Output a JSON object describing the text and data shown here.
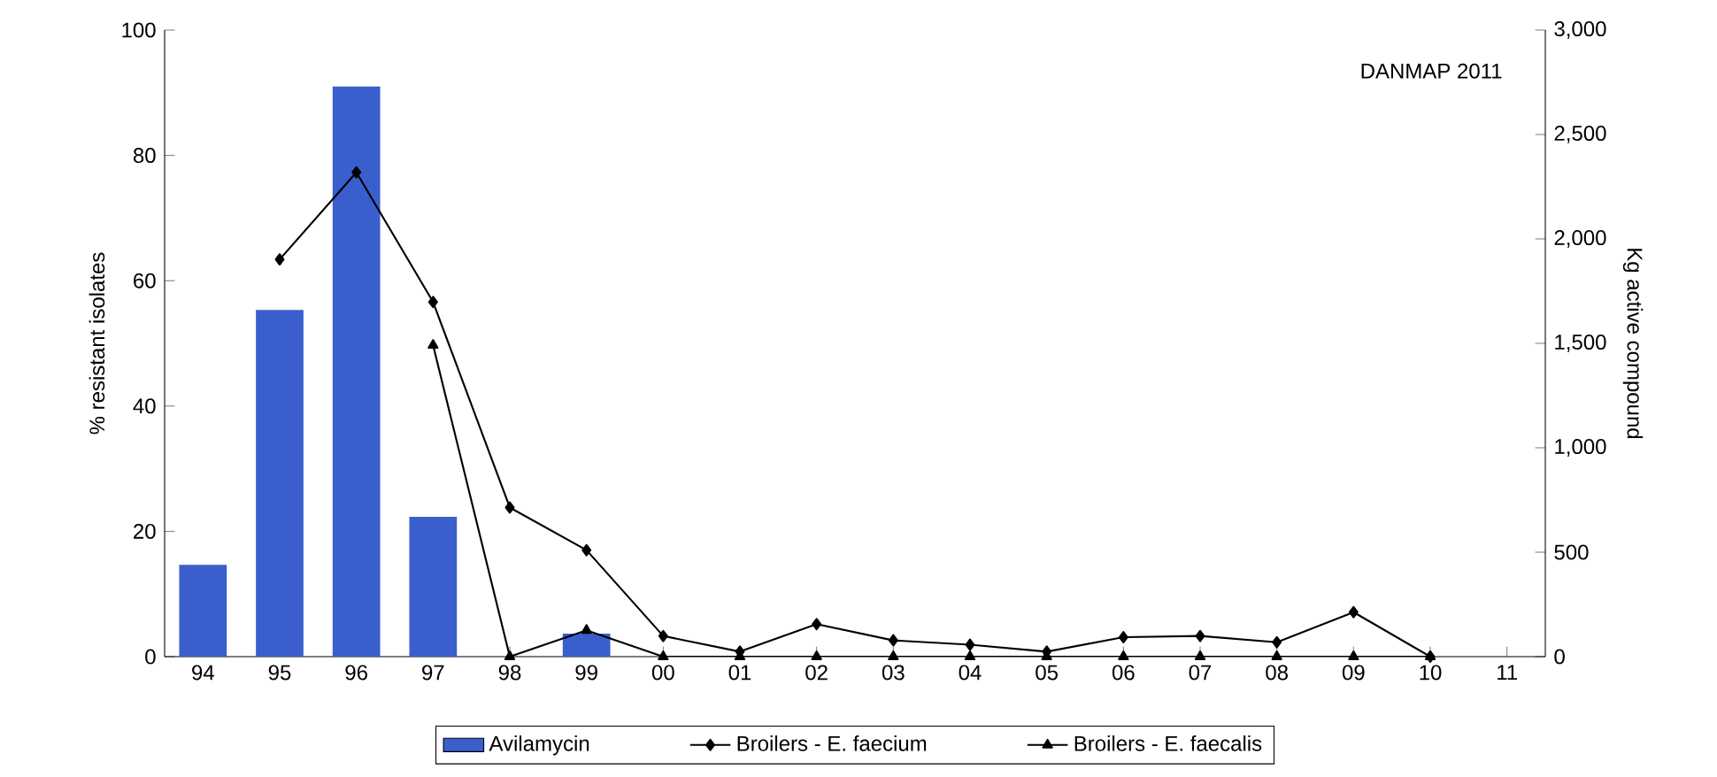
{
  "chart_data": {
    "type": "bar",
    "categories": [
      "94",
      "95",
      "96",
      "97",
      "98",
      "99",
      "00",
      "01",
      "02",
      "03",
      "04",
      "05",
      "06",
      "07",
      "08",
      "09",
      "10",
      "11"
    ],
    "ylabel": "% resistant isolates",
    "y2label": "Kg active compound",
    "ylim": [
      0,
      100
    ],
    "yticks": [
      0,
      20,
      40,
      60,
      80,
      100
    ],
    "y2lim": [
      0,
      3000
    ],
    "y2ticks": [
      {
        "value": 0,
        "label": "0"
      },
      {
        "value": 500,
        "label": "500"
      },
      {
        "value": 1000,
        "label": "1,000"
      },
      {
        "value": 1500,
        "label": "1,500"
      },
      {
        "value": 2000,
        "label": "2,000"
      },
      {
        "value": 2500,
        "label": "2,500"
      },
      {
        "value": 3000,
        "label": "3,000"
      }
    ],
    "annotations": [
      "DANMAP 2011"
    ],
    "legend": "bottom",
    "series": [
      {
        "name": "Avilamycin",
        "axis": "y2",
        "color": "#3a5fcd",
        "values": [
          440,
          1660,
          2730,
          670,
          0,
          110,
          0,
          0,
          0,
          0,
          0,
          0,
          0,
          0,
          0,
          0,
          0,
          null
        ]
      },
      {
        "name": "Broilers - E. faecium",
        "type": "line",
        "marker": "diamond",
        "color": "#000000",
        "values": [
          null,
          63.4,
          77.3,
          56.6,
          23.8,
          17,
          3.3,
          0.8,
          5.2,
          2.6,
          1.9,
          0.8,
          3.1,
          3.3,
          2.3,
          7.1,
          0,
          null
        ]
      },
      {
        "name": "Broilers - E. faecalis",
        "type": "line",
        "marker": "triangle",
        "color": "#000000",
        "values": [
          null,
          null,
          null,
          49.7,
          0,
          4.2,
          0,
          0,
          0,
          0,
          0,
          0,
          0,
          0,
          0,
          0,
          0,
          null
        ]
      }
    ]
  }
}
